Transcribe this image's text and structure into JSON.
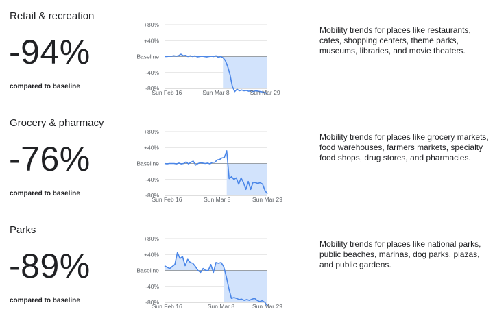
{
  "sections": [
    {
      "title": "Retail & recreation",
      "value": "-94%",
      "compared_label": "compared to baseline",
      "description": "Mobility trends for places like restaurants, cafes, shopping centers, theme parks, museums, libraries, and movie theaters."
    },
    {
      "title": "Grocery & pharmacy",
      "value": "-76%",
      "compared_label": "compared to baseline",
      "description": "Mobility trends for places like grocery markets, food warehouses, farmers markets, specialty food shops, drug stores, and pharmacies."
    },
    {
      "title": "Parks",
      "value": "-89%",
      "compared_label": "compared to baseline",
      "description": "Mobility trends for places like national parks, public beaches, marinas, dog parks, plazas, and public gardens."
    }
  ],
  "chart_data": [
    {
      "type": "area",
      "ylim": [
        -80,
        80
      ],
      "yticks": [
        80,
        40,
        0,
        -40,
        -80
      ],
      "ytick_labels": [
        "+80%",
        "+40%",
        "Baseline",
        "-40%",
        "-80%"
      ],
      "xtick_labels": [
        "Sun Feb 16",
        "Sun Mar 8",
        "Sun Mar 29"
      ],
      "xtick_positions": [
        1,
        22,
        43
      ],
      "line_color": "#4a86e8",
      "fill_color": "#d2e3fc",
      "y": [
        0,
        0,
        1,
        1,
        2,
        1,
        2,
        6,
        2,
        3,
        0,
        2,
        0,
        2,
        -1,
        0,
        1,
        0,
        -1,
        0,
        1,
        0,
        2,
        -2,
        0,
        -3,
        -10,
        -25,
        -45,
        -75,
        -88,
        -82,
        -86,
        -84,
        -86,
        -85,
        -87,
        -86,
        -88,
        -86,
        -87,
        -88,
        -89,
        -90,
        -94
      ]
    },
    {
      "type": "area",
      "ylim": [
        -80,
        80
      ],
      "yticks": [
        80,
        40,
        0,
        -40,
        -80
      ],
      "ytick_labels": [
        "+80%",
        "+40%",
        "Baseline",
        "-40%",
        "-80%"
      ],
      "xtick_labels": [
        "Sun Feb 16",
        "Sun Mar 8",
        "Sun Mar 29"
      ],
      "xtick_positions": [
        1,
        22,
        43
      ],
      "line_color": "#4a86e8",
      "fill_color": "#d2e3fc",
      "y": [
        0,
        -1,
        0,
        0,
        0,
        -1,
        1,
        -1,
        0,
        4,
        -1,
        3,
        6,
        -4,
        0,
        2,
        1,
        0,
        1,
        -1,
        3,
        3,
        9,
        10,
        14,
        15,
        32,
        -38,
        -33,
        -40,
        -36,
        -52,
        -36,
        -48,
        -65,
        -45,
        -65,
        -47,
        -48,
        -50,
        -48,
        -52,
        -68,
        -76
      ]
    },
    {
      "type": "area",
      "ylim": [
        -80,
        80
      ],
      "yticks": [
        80,
        40,
        0,
        -40,
        -80
      ],
      "ytick_labels": [
        "+80%",
        "+40%",
        "Baseline",
        "-40%",
        "-80%"
      ],
      "xtick_labels": [
        "Sun Feb 16",
        "Sun Mar 8",
        "Sun Mar 29"
      ],
      "xtick_positions": [
        1,
        22,
        43
      ],
      "line_color": "#4a86e8",
      "fill_color": "#d2e3fc",
      "y": [
        12,
        8,
        5,
        10,
        15,
        45,
        30,
        35,
        12,
        28,
        20,
        18,
        10,
        0,
        -5,
        5,
        0,
        0,
        15,
        -5,
        20,
        18,
        20,
        10,
        -15,
        -45,
        -70,
        -68,
        -70,
        -73,
        -72,
        -75,
        -73,
        -75,
        -72,
        -70,
        -75,
        -78,
        -76,
        -80,
        -89
      ]
    }
  ]
}
